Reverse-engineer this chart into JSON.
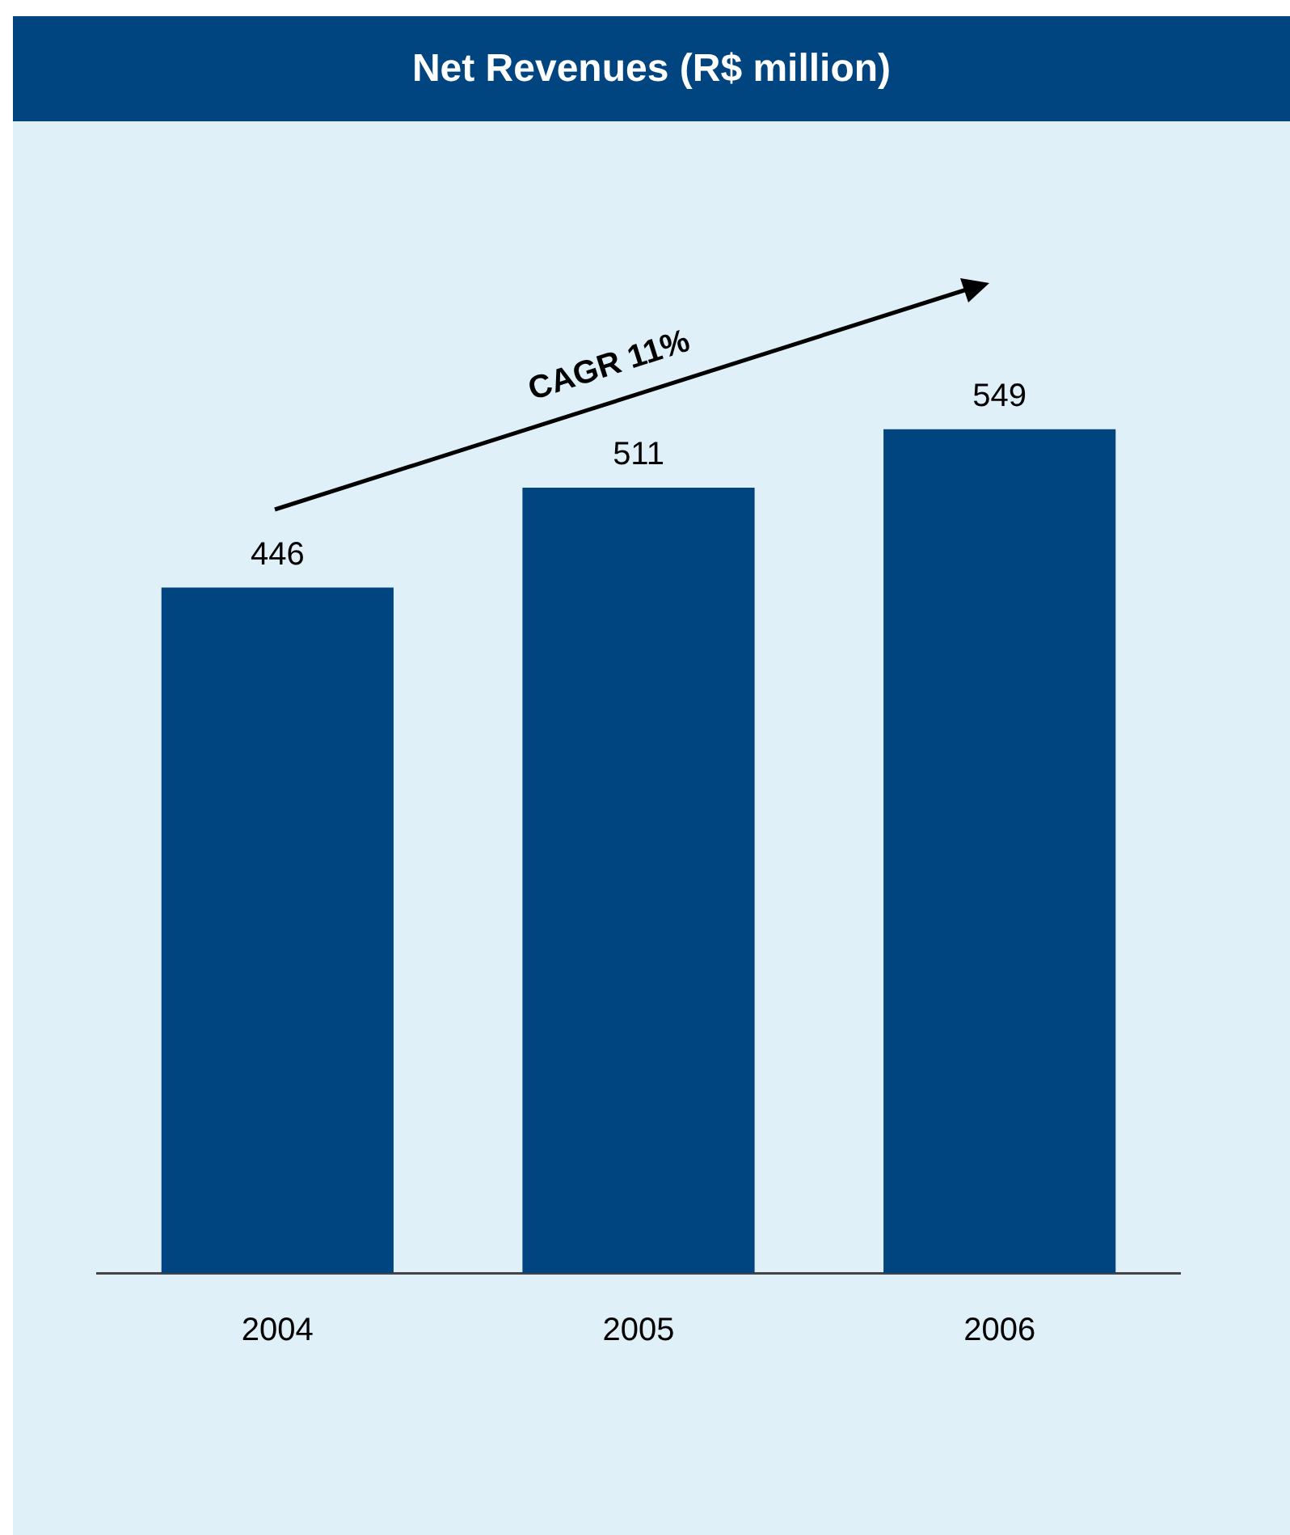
{
  "chart_data": {
    "type": "bar",
    "title": "Net Revenues (R$ million)",
    "categories": [
      "2004",
      "2005",
      "2006"
    ],
    "values": [
      446,
      511,
      549
    ],
    "color": "#00457f",
    "data_labels": true,
    "grid": false,
    "legend": false,
    "tick_labels": "x",
    "annotations": [
      "CAGR 11%"
    ]
  }
}
